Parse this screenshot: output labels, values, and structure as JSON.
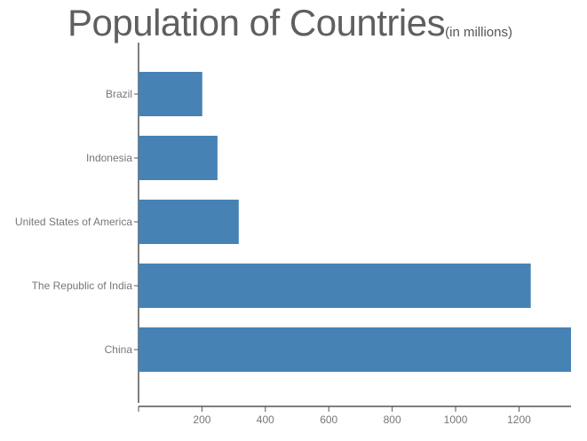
{
  "chart_data": {
    "type": "bar",
    "orientation": "horizontal",
    "title": "Population of Countries",
    "subtitle": "(in millions)",
    "categories": [
      "Brazil",
      "Indonesia",
      "United States of America",
      "The Republic of India",
      "China"
    ],
    "values": [
      201,
      249,
      316,
      1237,
      1364
    ],
    "xlim": [
      0,
      1364
    ],
    "xticks": [
      200,
      400,
      600,
      800,
      1000,
      1200
    ],
    "grid": false,
    "colors": {
      "bar": "#4682b4",
      "axis": "#555555",
      "label": "#777777"
    }
  }
}
